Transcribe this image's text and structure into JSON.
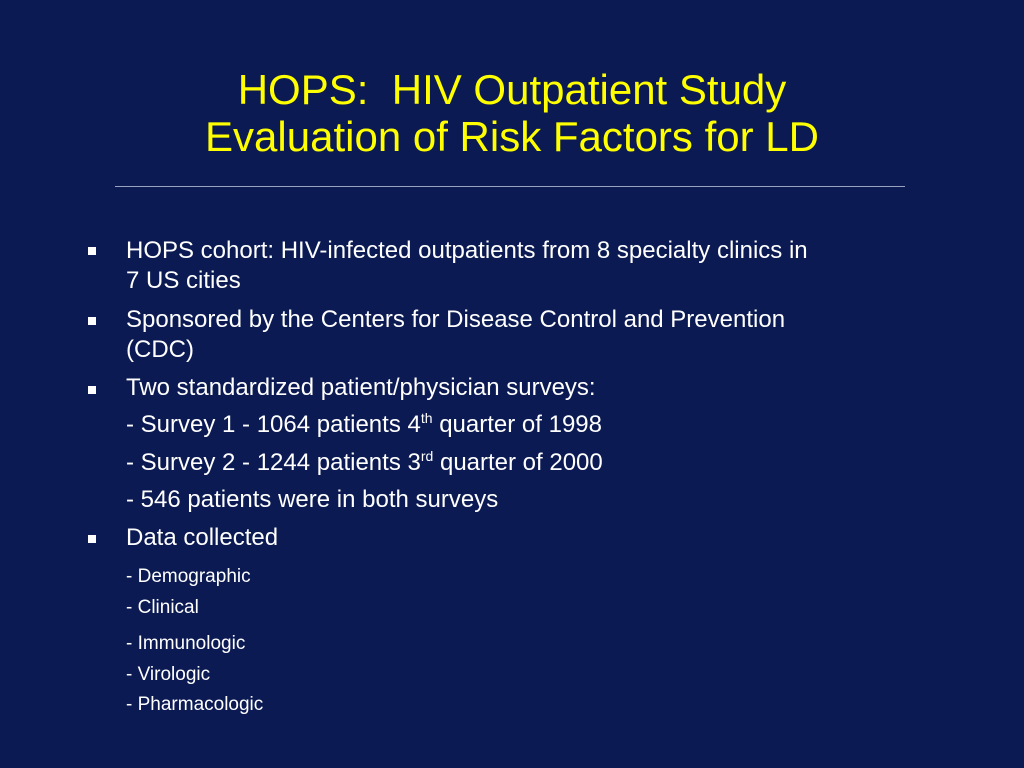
{
  "slide": {
    "title_line1": "HOPS:  HIV Outpatient Study",
    "title_line2": "Evaluation of Risk Factors for LD",
    "bullets": [
      {
        "line1": "HOPS cohort: HIV-infected outpatients from 8 specialty clinics in",
        "line2": "7 US cities"
      },
      {
        "line1": "Sponsored by the Centers for Disease Control and Prevention",
        "line2": "(CDC)"
      },
      {
        "line1": "Two standardized patient/physician surveys:"
      },
      {
        "line1": "Data collected"
      }
    ],
    "surveys": [
      {
        "prefix": "- Survey 1 - 1064 patients 4",
        "sup": "th",
        "suffix": " quarter of 1998"
      },
      {
        "prefix": "- Survey 2 - 1244 patients 3",
        "sup": "rd",
        "suffix": " quarter of 2000"
      },
      {
        "prefix": "- 546 patients were in both surveys"
      }
    ],
    "data_items": [
      "- Demographic",
      "- Clinical",
      "- Immunologic",
      "- Virologic",
      "- Pharmacologic"
    ]
  },
  "colors": {
    "background": "#0b1a52",
    "title": "#ffff00",
    "body_text": "#ffffff",
    "rule": "#9aa3c0"
  }
}
